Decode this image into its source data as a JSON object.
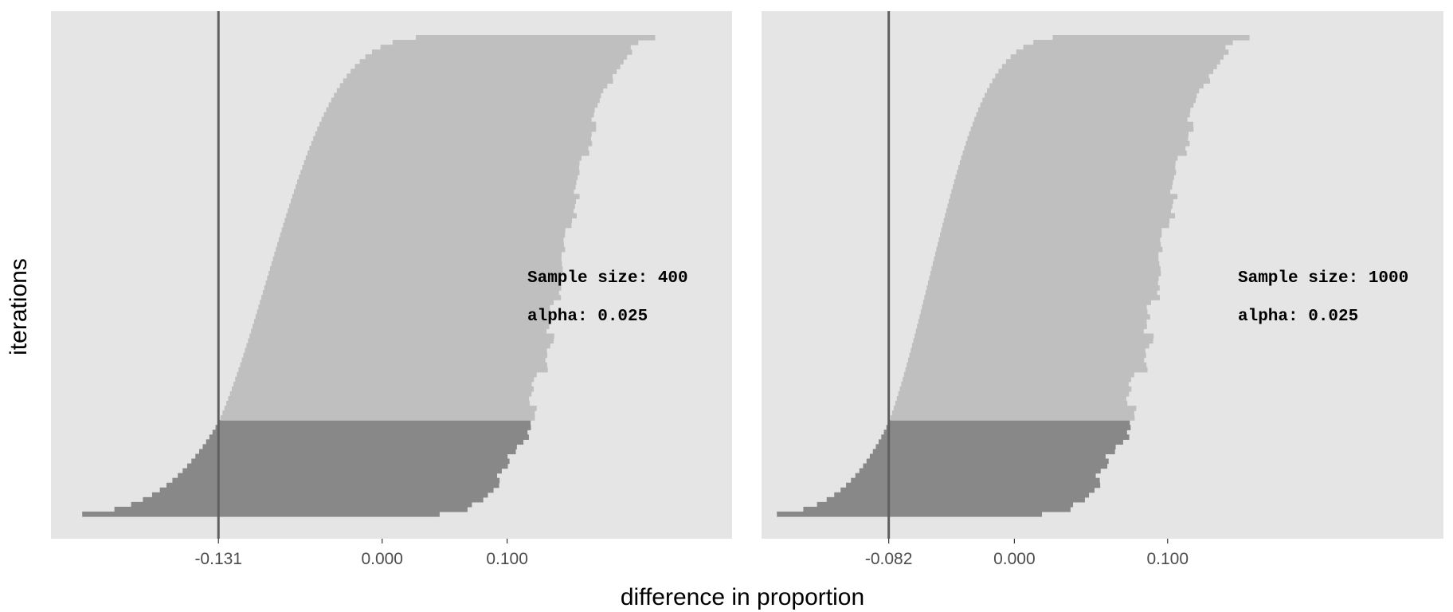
{
  "figure": {
    "xlabel": "difference in proportion",
    "ylabel": "iterations"
  },
  "colors": {
    "panel_background": "#e5e5e5",
    "interval_upper": "#bfbfbf",
    "interval_lower": "#888888",
    "reference_line": "#5f5f5f",
    "tick_text": "#4d4d4d"
  },
  "chart_data": [
    {
      "type": "bar",
      "orientation": "horizontal",
      "description_of_marks": "one-sided confidence intervals, one per iteration, sorted by lower bound",
      "title": "",
      "xlabel": "difference in proportion",
      "ylabel": "iterations",
      "xlim": [
        -0.265,
        0.28
      ],
      "reference_line_x": -0.131,
      "tick_values": [
        -0.131,
        0.0,
        0.1
      ],
      "tick_labels": [
        "-0.131",
        "0.000",
        "0.100"
      ],
      "iterations": 100,
      "iterations_below_reference": 20,
      "lower_bound_range": [
        -0.24,
        0.027
      ],
      "upper_bound_range": [
        0.046,
        0.22
      ],
      "annotations": [
        "Sample size: 400",
        "alpha: 0.025"
      ],
      "grid": false
    },
    {
      "type": "bar",
      "orientation": "horizontal",
      "description_of_marks": "one-sided confidence intervals, one per iteration, sorted by lower bound",
      "title": "",
      "xlabel": "difference in proportion",
      "ylabel": "iterations",
      "xlim": [
        -0.165,
        0.28
      ],
      "reference_line_x": -0.082,
      "tick_values": [
        -0.082,
        0.0,
        0.1
      ],
      "tick_labels": [
        "-0.082",
        "0.000",
        "0.100"
      ],
      "iterations": 100,
      "iterations_below_reference": 20,
      "lower_bound_range": [
        -0.155,
        0.025
      ],
      "upper_bound_range": [
        0.018,
        0.155
      ],
      "annotations": [
        "Sample size: 1000",
        "alpha: 0.025"
      ],
      "grid": false
    }
  ]
}
